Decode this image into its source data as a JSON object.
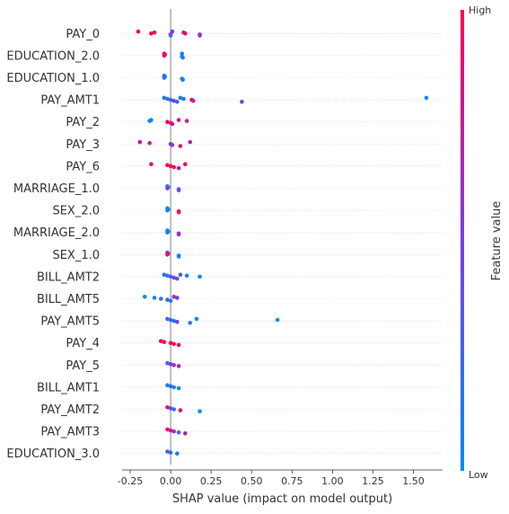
{
  "chart_data": {
    "type": "scatter",
    "subtype": "beeswarm",
    "xlabel": "SHAP value (impact on model output)",
    "xlim": [
      -0.3,
      1.68
    ],
    "xticks": [
      "-0.25",
      "0.00",
      "0.25",
      "0.50",
      "0.75",
      "1.00",
      "1.25",
      "1.50"
    ],
    "colorbar": {
      "title": "Feature value",
      "high": "High",
      "low": "Low",
      "low_color": "#008bfb",
      "mid_color": "#7c3ee0",
      "high_color": "#ff0052"
    },
    "zero_line_color": "#999999",
    "features": [
      {
        "name": "PAY_0",
        "points": [
          [
            -0.2,
            1
          ],
          [
            -0.1,
            1
          ],
          [
            -0.12,
            1
          ],
          [
            0,
            0.9
          ],
          [
            0,
            0.1
          ],
          [
            0.01,
            0.5
          ],
          [
            0.08,
            0.9
          ],
          [
            0.09,
            0.9
          ],
          [
            0.18,
            0.7
          ],
          [
            0.18,
            0.5
          ]
        ]
      },
      {
        "name": "EDUCATION_2.0",
        "points": [
          [
            -0.04,
            0.9
          ],
          [
            -0.035,
            1
          ],
          [
            -0.04,
            0.95
          ],
          [
            0.07,
            0
          ],
          [
            0.075,
            0.05
          ],
          [
            0.07,
            0.1
          ]
        ]
      },
      {
        "name": "EDUCATION_1.0",
        "points": [
          [
            -0.04,
            0.1
          ],
          [
            -0.035,
            0.05
          ],
          [
            -0.04,
            0.2
          ],
          [
            0.07,
            0
          ],
          [
            0.075,
            0.05
          ]
        ]
      },
      {
        "name": "PAY_AMT1",
        "points": [
          [
            -0.04,
            0.2
          ],
          [
            -0.02,
            0.1
          ],
          [
            0,
            0.3
          ],
          [
            0.02,
            0.4
          ],
          [
            0.04,
            0.3
          ],
          [
            0.06,
            0.1
          ],
          [
            0.08,
            0.05
          ],
          [
            0.13,
            0.9
          ],
          [
            0.14,
            0.7
          ],
          [
            0.44,
            0.5
          ],
          [
            1.58,
            0
          ]
        ]
      },
      {
        "name": "PAY_2",
        "points": [
          [
            -0.12,
            0
          ],
          [
            -0.13,
            0.05
          ],
          [
            -0.02,
            1
          ],
          [
            0,
            1
          ],
          [
            0.01,
            0.8
          ],
          [
            0.05,
            0.8
          ],
          [
            0.1,
            0.7
          ]
        ]
      },
      {
        "name": "PAY_3",
        "points": [
          [
            -0.19,
            0.8
          ],
          [
            -0.13,
            0.7
          ],
          [
            0,
            0.6
          ],
          [
            0.01,
            0.5
          ],
          [
            0.06,
            0.9
          ],
          [
            0.12,
            0.7
          ]
        ]
      },
      {
        "name": "PAY_6",
        "points": [
          [
            -0.12,
            0.9
          ],
          [
            -0.02,
            1
          ],
          [
            0,
            1
          ],
          [
            0.02,
            0.9
          ],
          [
            0.05,
            0.8
          ],
          [
            0.09,
            1
          ]
        ]
      },
      {
        "name": "MARRIAGE_1.0",
        "points": [
          [
            -0.02,
            0.05
          ],
          [
            -0.015,
            0.1
          ],
          [
            -0.02,
            0.5
          ],
          [
            0.05,
            0.6
          ],
          [
            0.05,
            0.3
          ]
        ]
      },
      {
        "name": "SEX_2.0",
        "points": [
          [
            -0.02,
            0.05
          ],
          [
            -0.015,
            0.1
          ],
          [
            -0.02,
            0
          ],
          [
            0.05,
            1
          ],
          [
            0.05,
            0.9
          ]
        ]
      },
      {
        "name": "MARRIAGE_2.0",
        "points": [
          [
            -0.02,
            0.05
          ],
          [
            -0.015,
            0.1
          ],
          [
            -0.02,
            0
          ],
          [
            0.05,
            0.8
          ],
          [
            0.05,
            0.6
          ]
        ]
      },
      {
        "name": "SEX_1.0",
        "points": [
          [
            -0.02,
            0.5
          ],
          [
            -0.015,
            0.6
          ],
          [
            -0.02,
            1
          ],
          [
            0.05,
            0
          ],
          [
            0.05,
            0.05
          ]
        ]
      },
      {
        "name": "BILL_AMT2",
        "points": [
          [
            -0.04,
            0.2
          ],
          [
            -0.02,
            0.1
          ],
          [
            0,
            0.3
          ],
          [
            0.02,
            0.5
          ],
          [
            0.04,
            0.4
          ],
          [
            0.06,
            0.3
          ],
          [
            0.1,
            0.1
          ],
          [
            0.18,
            0
          ]
        ]
      },
      {
        "name": "BILL_AMT5",
        "points": [
          [
            -0.16,
            0
          ],
          [
            -0.1,
            0.1
          ],
          [
            -0.06,
            0.2
          ],
          [
            -0.02,
            0.3
          ],
          [
            0,
            0.1
          ],
          [
            0.02,
            0.6
          ],
          [
            0.04,
            0.5
          ]
        ]
      },
      {
        "name": "PAY_AMT5",
        "points": [
          [
            -0.02,
            0.3
          ],
          [
            0,
            0.2
          ],
          [
            0.02,
            0.1
          ],
          [
            0.04,
            0.5
          ],
          [
            0.12,
            0.1
          ],
          [
            0.16,
            0
          ],
          [
            0.66,
            0
          ]
        ]
      },
      {
        "name": "PAY_4",
        "points": [
          [
            -0.06,
            1
          ],
          [
            -0.04,
            1
          ],
          [
            0,
            1
          ],
          [
            0.02,
            0.9
          ],
          [
            0.05,
            1
          ]
        ]
      },
      {
        "name": "PAY_5",
        "points": [
          [
            -0.02,
            0.3
          ],
          [
            0,
            0.5
          ],
          [
            0.02,
            0.6
          ],
          [
            0.05,
            0.7
          ]
        ]
      },
      {
        "name": "BILL_AMT1",
        "points": [
          [
            -0.02,
            0.1
          ],
          [
            0,
            0.2
          ],
          [
            0.02,
            0.1
          ],
          [
            0.05,
            0
          ]
        ]
      },
      {
        "name": "PAY_AMT2",
        "points": [
          [
            -0.02,
            0.8
          ],
          [
            0,
            0.5
          ],
          [
            0.02,
            0.1
          ],
          [
            0.06,
            0.9
          ],
          [
            0.18,
            0
          ]
        ]
      },
      {
        "name": "PAY_AMT3",
        "points": [
          [
            -0.02,
            0.9
          ],
          [
            0,
            0.8
          ],
          [
            0.02,
            0.6
          ],
          [
            0.05,
            0.3
          ],
          [
            0.09,
            0.7
          ]
        ]
      },
      {
        "name": "EDUCATION_3.0",
        "points": [
          [
            -0.02,
            0.3
          ],
          [
            0,
            0.2
          ],
          [
            0.04,
            0.1
          ]
        ]
      }
    ]
  }
}
